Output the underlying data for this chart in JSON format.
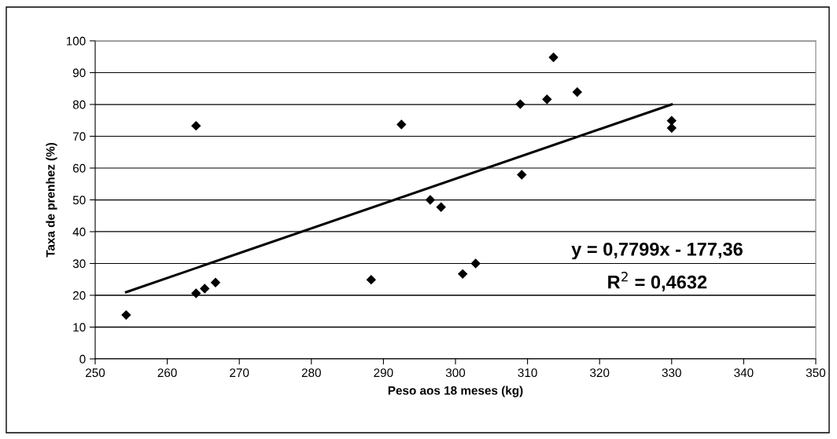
{
  "chart_data": {
    "type": "scatter",
    "xlabel": "Peso aos 18 meses (kg)",
    "ylabel": "Taxa de prenhez (%)",
    "annotations": [
      "y = 0,7799x - 177,36",
      "R$^{2}$ = 0,4632"
    ],
    "xlim": [
      250,
      350
    ],
    "xticks": [
      250,
      260,
      270,
      280,
      290,
      300,
      310,
      320,
      330,
      340,
      350
    ],
    "ylim": [
      0,
      100
    ],
    "yticks": [
      0,
      10,
      20,
      30,
      40,
      50,
      60,
      70,
      80,
      90,
      100
    ],
    "grid": "y",
    "marker": "diamond",
    "legend": false,
    "series": [
      {
        "color": "#000000",
        "x": [
          254.3,
          264.0,
          264.0,
          265.2,
          266.7,
          288.3,
          292.5,
          296.5,
          298.0,
          301.0,
          302.8,
          309.0,
          309.2,
          312.7,
          313.6,
          316.9,
          330.0,
          330.0
        ],
        "values": [
          13.8,
          73.3,
          20.6,
          22.1,
          24.0,
          24.9,
          73.7,
          50.0,
          47.7,
          26.7,
          30.0,
          80.1,
          57.9,
          81.6,
          94.8,
          83.9,
          74.9,
          72.6
        ]
      },
      {
        "type": "line",
        "color": "#000000",
        "x": [
          254.3,
          330.0
        ],
        "values": [
          21.0,
          80.0
        ],
        "marker": "none"
      }
    ]
  }
}
